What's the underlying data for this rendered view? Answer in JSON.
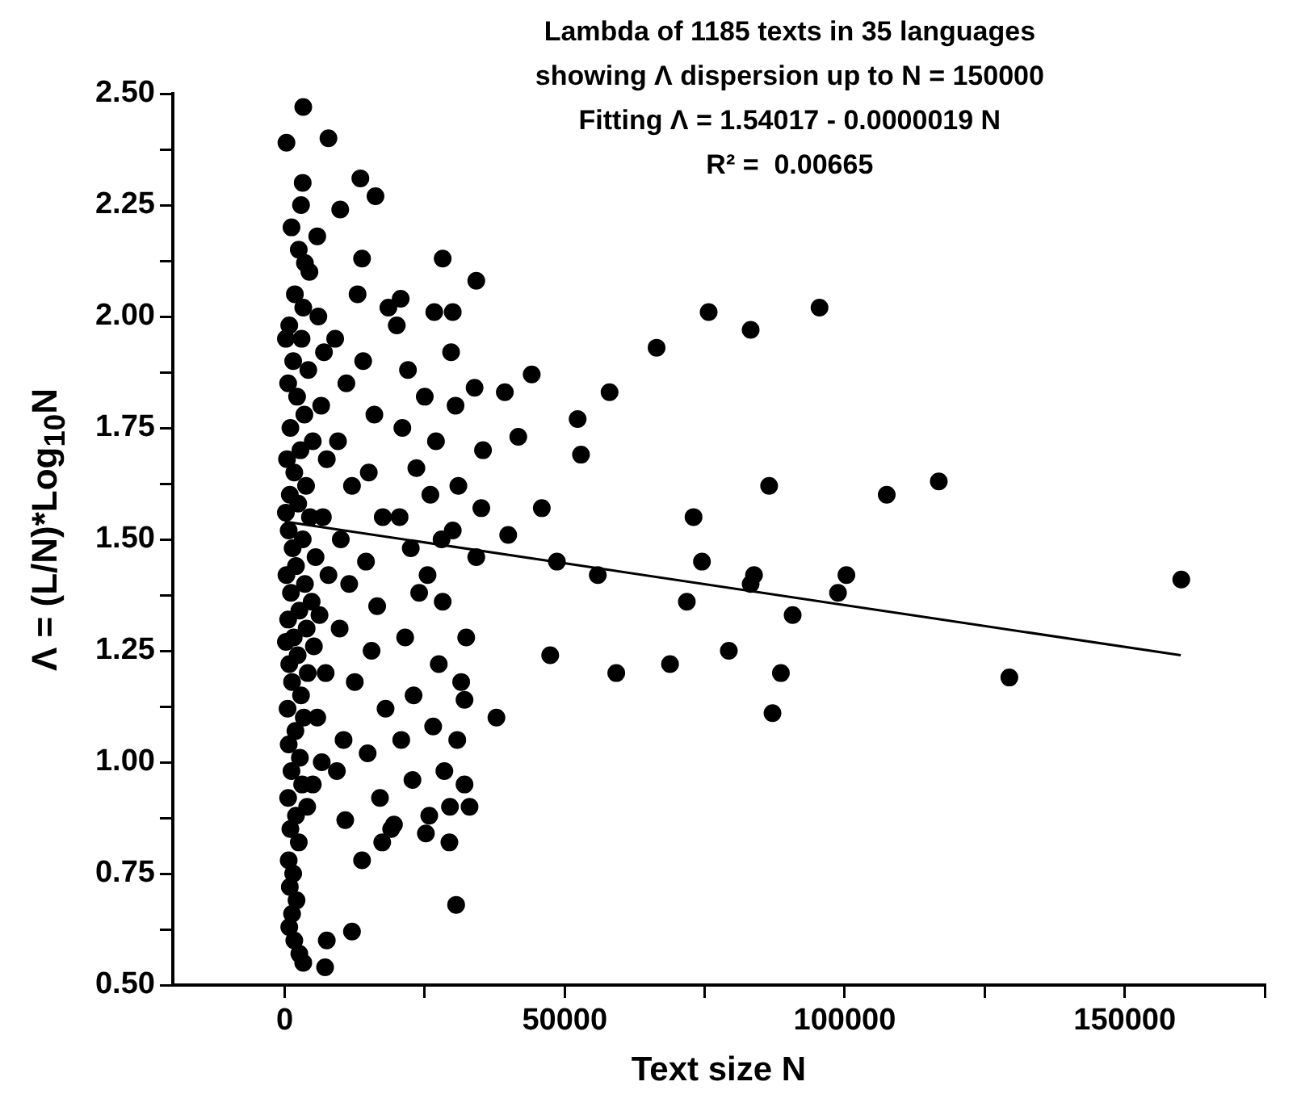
{
  "chart_data": {
    "type": "scatter",
    "title": "Lambda of 1185 texts in 35 languages",
    "subtitle": "showing Λ dispersion up to N = 150000",
    "annotations": [
      "Fitting Λ = 1.54017 - 0.0000019 N",
      "R² =  0.00665"
    ],
    "xlabel": "Text size N",
    "ylabel": "Λ = (L/N)*Log$_{10}$N",
    "xlim": [
      -20000,
      175000
    ],
    "xticks": [
      0,
      {
        "value": 25000,
        "label": null
      },
      50000,
      {
        "value": 75000,
        "label": null
      },
      100000,
      {
        "value": 125000,
        "label": null
      },
      150000,
      {
        "value": 175000,
        "label": null
      }
    ],
    "ylim": [
      0.5,
      2.5
    ],
    "yticks": [
      {
        "value": 0.5,
        "label": "0.50"
      },
      {
        "value": 0.625,
        "label": null
      },
      {
        "value": 0.75,
        "label": "0.75"
      },
      {
        "value": 0.875,
        "label": null
      },
      {
        "value": 1.0,
        "label": "1.00"
      },
      {
        "value": 1.125,
        "label": null
      },
      {
        "value": 1.25,
        "label": "1.25"
      },
      {
        "value": 1.375,
        "label": null
      },
      {
        "value": 1.5,
        "label": "1.50"
      },
      {
        "value": 1.625,
        "label": null
      },
      {
        "value": 1.75,
        "label": "1.75"
      },
      {
        "value": 1.875,
        "label": null
      },
      {
        "value": 2.0,
        "label": "2.00"
      },
      {
        "value": 2.125,
        "label": null
      },
      {
        "value": 2.25,
        "label": "2.25"
      },
      {
        "value": 2.375,
        "label": null
      },
      {
        "value": 2.5,
        "label": "2.50"
      }
    ],
    "grid": false,
    "legend": false,
    "series": [
      {
        "type": "scatter",
        "marker": "circle",
        "color": "#000000",
        "x": [
          75700,
          66400,
          83200,
          95500,
          58000,
          52300,
          52900,
          86500,
          107500,
          116800,
          73000,
          74500,
          55900,
          83800,
          83200,
          100300,
          98800,
          71800,
          90700,
          160100,
          79300,
          59200,
          68800,
          88600,
          129400,
          87100,
          3300,
          300,
          7800,
          13500,
          16200,
          9900,
          28200,
          34200,
          13800,
          20700,
          30000,
          44100,
          39300,
          41700,
          45900,
          39900,
          48600,
          47400,
          37800,
          30600,
          12000,
          7500,
          7200,
          3300,
          13800,
          17400,
          10800,
          19500,
          25200,
          29400,
          33000,
          32100,
          32100,
          32400,
          28200,
          34200,
          35100,
          35400,
          33900,
          29700,
          26700,
          1200,
          2500,
          1800,
          800,
          3000,
          1500,
          4200,
          600,
          2200,
          3500,
          1000,
          5000,
          2800,
          400,
          1700,
          3800,
          900,
          2400,
          4500,
          700,
          3200,
          1400,
          5500,
          2000,
          300,
          3600,
          1100,
          4800,
          2600,
          600,
          3900,
          1600,
          5200,
          2300,
          800,
          4100,
          1300,
          2900,
          500,
          3400,
          1900,
          700,
          2700,
          1200,
          3100,
          600,
          2000,
          1000,
          2500,
          700,
          1500,
          900,
          2100,
          1300,
          800,
          1700,
          2600,
          3200,
          2900,
          5800,
          3600,
          6000,
          7000,
          6500,
          7500,
          6800,
          7800,
          6200,
          7300,
          5800,
          6600,
          5000,
          4000,
          200,
          200,
          200,
          4400,
          3300,
          9000,
          11000,
          9500,
          12000,
          10000,
          11500,
          9800,
          12500,
          10500,
          9300,
          14000,
          16000,
          15000,
          17500,
          14500,
          16500,
          15500,
          18000,
          14800,
          17000,
          20000,
          22000,
          21000,
          23500,
          20500,
          22500,
          24000,
          21500,
          23000,
          20800,
          22800,
          25000,
          27000,
          26000,
          28000,
          25500,
          27500,
          26500,
          28500,
          25800,
          30500,
          31000,
          30000,
          31500,
          30800,
          29500,
          18500,
          13000,
          19000
        ],
        "values": [
          2.01,
          1.93,
          1.97,
          2.02,
          1.83,
          1.77,
          1.69,
          1.62,
          1.6,
          1.63,
          1.55,
          1.45,
          1.42,
          1.42,
          1.4,
          1.42,
          1.38,
          1.36,
          1.33,
          1.41,
          1.25,
          1.2,
          1.22,
          1.2,
          1.19,
          1.11,
          2.47,
          2.39,
          2.4,
          2.31,
          2.27,
          2.24,
          2.13,
          2.08,
          2.13,
          2.04,
          2.01,
          1.87,
          1.83,
          1.73,
          1.57,
          1.51,
          1.45,
          1.24,
          1.1,
          0.68,
          0.62,
          0.6,
          0.54,
          0.55,
          0.78,
          0.82,
          0.87,
          0.86,
          0.84,
          0.82,
          0.9,
          0.95,
          1.14,
          1.28,
          1.36,
          1.46,
          1.57,
          1.7,
          1.84,
          1.92,
          2.01,
          2.2,
          2.15,
          2.05,
          1.98,
          1.95,
          1.9,
          1.88,
          1.85,
          1.82,
          1.78,
          1.75,
          1.72,
          1.7,
          1.68,
          1.65,
          1.62,
          1.6,
          1.58,
          1.55,
          1.52,
          1.5,
          1.48,
          1.46,
          1.44,
          1.42,
          1.4,
          1.38,
          1.36,
          1.34,
          1.32,
          1.3,
          1.28,
          1.26,
          1.24,
          1.22,
          1.2,
          1.18,
          1.15,
          1.12,
          1.1,
          1.07,
          1.04,
          1.01,
          0.98,
          0.95,
          0.92,
          0.88,
          0.85,
          0.82,
          0.78,
          0.75,
          0.72,
          0.69,
          0.66,
          0.63,
          0.6,
          0.57,
          2.3,
          2.25,
          2.18,
          2.12,
          2.0,
          1.92,
          1.8,
          1.68,
          1.55,
          1.42,
          1.33,
          1.2,
          1.1,
          1.0,
          0.95,
          0.9,
          1.95,
          1.56,
          1.27,
          2.1,
          2.02,
          1.95,
          1.85,
          1.72,
          1.62,
          1.5,
          1.4,
          1.3,
          1.18,
          1.05,
          0.98,
          1.9,
          1.78,
          1.65,
          1.55,
          1.45,
          1.35,
          1.25,
          1.12,
          1.02,
          0.92,
          1.98,
          1.88,
          1.75,
          1.66,
          1.55,
          1.48,
          1.38,
          1.28,
          1.15,
          1.05,
          0.96,
          1.82,
          1.72,
          1.6,
          1.5,
          1.42,
          1.22,
          1.08,
          0.98,
          0.88,
          1.8,
          1.62,
          1.52,
          1.18,
          1.05,
          0.9,
          2.02,
          2.05,
          0.85
        ]
      },
      {
        "type": "line",
        "marker": "none",
        "color": "#000000",
        "line_style": "solid",
        "x": [
          0,
          160000
        ],
        "values": [
          1.54,
          1.24
        ]
      }
    ]
  }
}
